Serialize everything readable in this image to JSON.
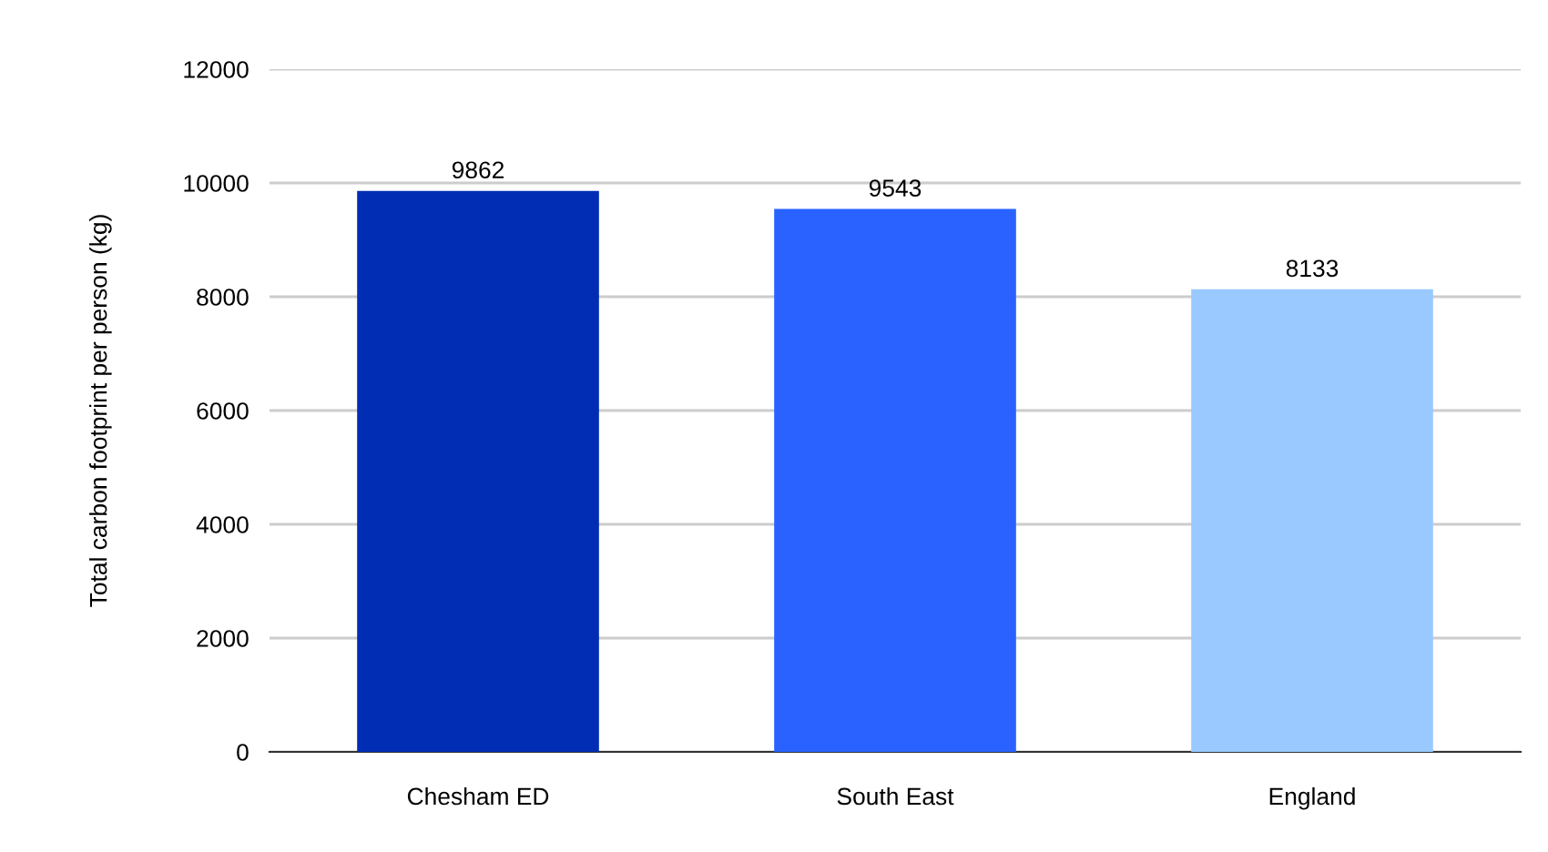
{
  "chart_data": {
    "type": "bar",
    "ylabel": "Total carbon footprint per person (kg)",
    "categories": [
      "Chesham ED",
      "South East",
      "England"
    ],
    "values": [
      9862,
      9543,
      8133
    ],
    "colors": [
      "#002db3",
      "#2962ff",
      "#99c9ff"
    ],
    "ylim": [
      0,
      12000
    ],
    "yticks": [
      0,
      2000,
      4000,
      6000,
      8000,
      10000,
      12000
    ],
    "grid": "y",
    "data_labels": true
  }
}
